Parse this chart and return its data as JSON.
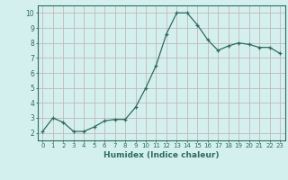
{
  "x": [
    0,
    1,
    2,
    3,
    4,
    5,
    6,
    7,
    8,
    9,
    10,
    11,
    12,
    13,
    14,
    15,
    16,
    17,
    18,
    19,
    20,
    21,
    22,
    23
  ],
  "y": [
    2.1,
    3.0,
    2.7,
    2.1,
    2.1,
    2.4,
    2.8,
    2.9,
    2.9,
    3.7,
    5.0,
    6.5,
    8.6,
    10.0,
    10.0,
    9.2,
    8.2,
    7.5,
    7.8,
    8.0,
    7.9,
    7.7,
    7.7,
    7.3
  ],
  "xlabel": "Humidex (Indice chaleur)",
  "ylim": [
    1.5,
    10.5
  ],
  "xlim": [
    -0.5,
    23.5
  ],
  "yticks": [
    2,
    3,
    4,
    5,
    6,
    7,
    8,
    9,
    10
  ],
  "xticks": [
    0,
    1,
    2,
    3,
    4,
    5,
    6,
    7,
    8,
    9,
    10,
    11,
    12,
    13,
    14,
    15,
    16,
    17,
    18,
    19,
    20,
    21,
    22,
    23
  ],
  "line_color": "#2e6b5e",
  "marker": "+",
  "bg_color": "#d4f0ee",
  "grid_color": "#c0b8b8",
  "axis_color": "#2e6b5e",
  "label_color": "#2e6b5e"
}
